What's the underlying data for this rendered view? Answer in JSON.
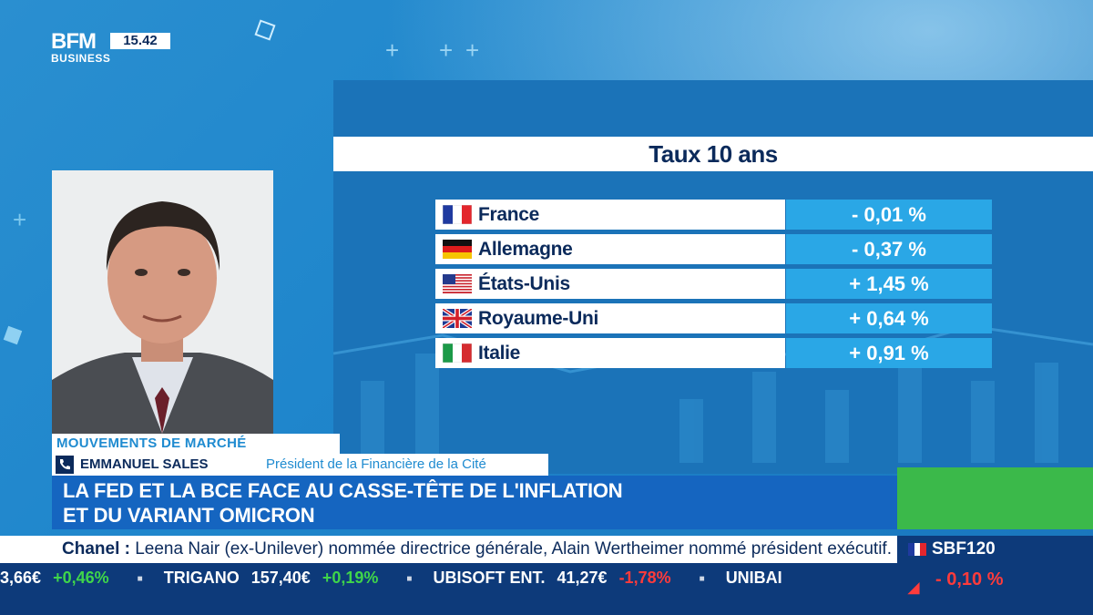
{
  "brand": {
    "logo_top": "BFM",
    "logo_bottom": "BUSINESS",
    "time": "15.42"
  },
  "panel": {
    "title": "Taux 10 ans",
    "rows": [
      {
        "country": "France",
        "flag": "flag-france-icon",
        "value": "- 0,01 %"
      },
      {
        "country": "Allemagne",
        "flag": "flag-germany-icon",
        "value": "- 0,37 %"
      },
      {
        "country": "États-Unis",
        "flag": "flag-usa-icon",
        "value": "+ 1,45 %"
      },
      {
        "country": "Royaume-Uni",
        "flag": "flag-uk-icon",
        "value": "+ 0,64 %"
      },
      {
        "country": "Italie",
        "flag": "flag-italy-icon",
        "value": "+ 0,91 %"
      }
    ]
  },
  "lower_third": {
    "segment": "MOUVEMENTS DE MARCHÉ",
    "speaker_name": "EMMANUEL SALES",
    "speaker_title": "Président de la Financière de la Cité",
    "headline_line1": "LA FED ET LA BCE FACE AU CASSE-TÊTE DE L'INFLATION",
    "headline_line2": "ET DU VARIANT OMICRON"
  },
  "news_ticker": {
    "prefix": "Chanel :",
    "text": "Leena Nair (ex-Unilever) nommée directrice générale, Alain Wertheimer nommé président exécutif."
  },
  "stock_ticker": [
    {
      "name": "",
      "price": "3,66€",
      "change": "+0,46%",
      "dir": "up"
    },
    {
      "name": "TRIGANO",
      "price": "157,40€",
      "change": "+0,19%",
      "dir": "up"
    },
    {
      "name": "UBISOFT ENT.",
      "price": "41,27€",
      "change": "-1,78%",
      "dir": "down"
    },
    {
      "name": "UNIBAI",
      "price": "",
      "change": "",
      "dir": ""
    }
  ],
  "index": {
    "name": "SBF120",
    "change": "- 0,10 %",
    "dir": "down"
  },
  "colors": {
    "accent_blue": "#1f8bd0",
    "navy": "#0b2a5b",
    "cell_blue": "#2aa7e6",
    "green": "#3bb94a",
    "red": "#ff3b3b"
  }
}
